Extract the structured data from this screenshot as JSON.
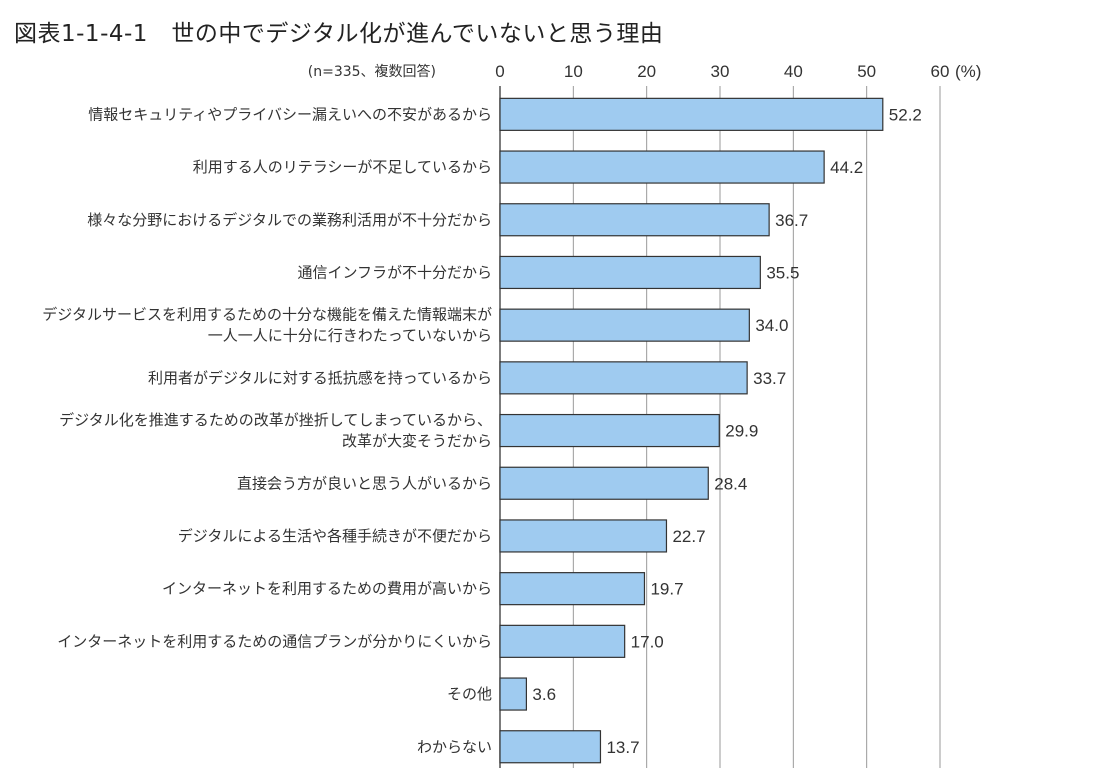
{
  "figure": {
    "title": "図表1-1-4-1　世の中でデジタル化が進んでいないと思う理由"
  },
  "chart_data": {
    "type": "bar",
    "orientation": "horizontal",
    "note": "(n=335、複数回答)",
    "unit": "(%)",
    "xlim": [
      0,
      60
    ],
    "xticks": [
      0,
      10,
      20,
      30,
      40,
      50,
      60
    ],
    "grid": true,
    "bar_color": "#9fcbf0",
    "bar_stroke": "#333333",
    "categories": [
      [
        "情報セキュリティやプライバシー漏えいへの不安があるから"
      ],
      [
        "利用する人のリテラシーが不足しているから"
      ],
      [
        "様々な分野におけるデジタルでの業務利活用が不十分だから"
      ],
      [
        "通信インフラが不十分だから"
      ],
      [
        "デジタルサービスを利用するための十分な機能を備えた情報端末が",
        "一人一人に十分に行きわたっていないから"
      ],
      [
        "利用者がデジタルに対する抵抗感を持っているから"
      ],
      [
        "デジタル化を推進するための改革が挫折してしまっているから、",
        "改革が大変そうだから"
      ],
      [
        "直接会う方が良いと思う人がいるから"
      ],
      [
        "デジタルによる生活や各種手続きが不便だから"
      ],
      [
        "インターネットを利用するための費用が高いから"
      ],
      [
        "インターネットを利用するための通信プランが分かりにくいから"
      ],
      [
        "その他"
      ],
      [
        "わからない"
      ]
    ],
    "values": [
      52.2,
      44.2,
      36.7,
      35.5,
      34.0,
      33.7,
      29.9,
      28.4,
      22.7,
      19.7,
      17.0,
      3.6,
      13.7
    ],
    "value_labels": [
      "52.2",
      "44.2",
      "36.7",
      "35.5",
      "34.0",
      "33.7",
      "29.9",
      "28.4",
      "22.7",
      "19.7",
      "17.0",
      "3.6",
      "13.7"
    ]
  }
}
